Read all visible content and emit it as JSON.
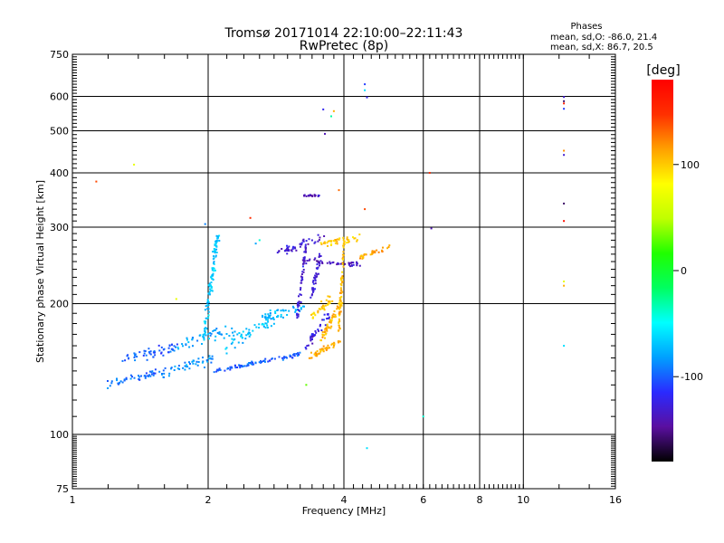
{
  "chart_data": {
    "type": "scatter",
    "title": "Tromsø 20171014 22:10:00–22:11:43",
    "subtitle": "RwPretec (8p)",
    "xlabel": "Frequency [MHz]",
    "ylabel": "Stationary phase Virtual Height [km]",
    "x_scale": "log",
    "y_scale": "log",
    "xlim": [
      1,
      16
    ],
    "ylim": [
      75,
      750
    ],
    "x_ticks": [
      1,
      2,
      4,
      6,
      8,
      10,
      16
    ],
    "y_ticks": [
      75,
      100,
      200,
      300,
      400,
      500,
      600,
      750
    ],
    "grid": true,
    "info": {
      "heading": "Phases",
      "line1": "mean, sd,O: -86.0, 21.4",
      "line2": "mean, sd,X: 86.7, 20.5"
    },
    "colorbar": {
      "label": "[deg]",
      "range": [
        -180,
        180
      ],
      "ticks": [
        -100,
        0,
        100
      ],
      "colors": [
        "#000000",
        "#5a0fa0",
        "#2a2aff",
        "#00a0ff",
        "#00ffff",
        "#00ff60",
        "#20ff00",
        "#c0ff00",
        "#ffff00",
        "#ffa000",
        "#ff3000",
        "#ff0000"
      ]
    },
    "clusters": [
      {
        "kind": "seg",
        "x1": 1.18,
        "y1": 130,
        "x2": 1.6,
        "y2": 140,
        "n": 50,
        "phase": -95,
        "jh": 0.03,
        "jf": 0.02
      },
      {
        "kind": "seg",
        "x1": 1.3,
        "y1": 150,
        "x2": 1.7,
        "y2": 158,
        "n": 55,
        "phase": -100,
        "jh": 0.04,
        "jf": 0.02
      },
      {
        "kind": "seg",
        "x1": 1.6,
        "y1": 138,
        "x2": 2.05,
        "y2": 150,
        "n": 45,
        "phase": -85,
        "jh": 0.04,
        "jf": 0.02
      },
      {
        "kind": "seg",
        "x1": 1.7,
        "y1": 160,
        "x2": 2.3,
        "y2": 175,
        "n": 45,
        "phase": -80,
        "jh": 0.05,
        "jf": 0.02
      },
      {
        "kind": "seg",
        "x1": 1.95,
        "y1": 165,
        "x2": 2.1,
        "y2": 290,
        "n": 110,
        "phase": -68,
        "jh": 0.03,
        "jf": 0.015
      },
      {
        "kind": "seg",
        "x1": 2.05,
        "y1": 140,
        "x2": 3.2,
        "y2": 153,
        "n": 90,
        "phase": -100,
        "jh": 0.015,
        "jf": 0.01
      },
      {
        "kind": "seg",
        "x1": 2.2,
        "y1": 158,
        "x2": 2.9,
        "y2": 192,
        "n": 60,
        "phase": -70,
        "jh": 0.05,
        "jf": 0.03
      },
      {
        "kind": "seg",
        "x1": 2.55,
        "y1": 182,
        "x2": 3.25,
        "y2": 196,
        "n": 35,
        "phase": -75,
        "jh": 0.03,
        "jf": 0.02
      },
      {
        "kind": "seg",
        "x1": 3.15,
        "y1": 185,
        "x2": 3.3,
        "y2": 275,
        "n": 55,
        "phase": -130,
        "jh": 0.03,
        "jf": 0.01
      },
      {
        "kind": "seg",
        "x1": 3.3,
        "y1": 160,
        "x2": 3.7,
        "y2": 190,
        "n": 40,
        "phase": -125,
        "jh": 0.04,
        "jf": 0.02
      },
      {
        "kind": "seg",
        "x1": 3.4,
        "y1": 210,
        "x2": 3.55,
        "y2": 260,
        "n": 40,
        "phase": -130,
        "jh": 0.03,
        "jf": 0.01
      },
      {
        "kind": "seg",
        "x1": 2.85,
        "y1": 262,
        "x2": 3.6,
        "y2": 285,
        "n": 45,
        "phase": -130,
        "jh": 0.03,
        "jf": 0.02
      },
      {
        "kind": "seg",
        "x1": 3.2,
        "y1": 253,
        "x2": 4.4,
        "y2": 245,
        "n": 45,
        "phase": -135,
        "jh": 0.02,
        "jf": 0.02
      },
      {
        "kind": "seg",
        "x1": 3.35,
        "y1": 150,
        "x2": 3.95,
        "y2": 165,
        "n": 50,
        "phase": 108,
        "jh": 0.025,
        "jf": 0.015
      },
      {
        "kind": "seg",
        "x1": 3.55,
        "y1": 165,
        "x2": 3.95,
        "y2": 200,
        "n": 55,
        "phase": 106,
        "jh": 0.03,
        "jf": 0.015
      },
      {
        "kind": "seg",
        "x1": 3.9,
        "y1": 175,
        "x2": 4.0,
        "y2": 275,
        "n": 70,
        "phase": 105,
        "jh": 0.03,
        "jf": 0.008
      },
      {
        "kind": "seg",
        "x1": 3.4,
        "y1": 186,
        "x2": 3.75,
        "y2": 206,
        "n": 35,
        "phase": 100,
        "jh": 0.03,
        "jf": 0.02
      },
      {
        "kind": "seg",
        "x1": 3.6,
        "y1": 275,
        "x2": 4.3,
        "y2": 282,
        "n": 40,
        "phase": 102,
        "jh": 0.03,
        "jf": 0.02
      },
      {
        "kind": "seg",
        "x1": 4.3,
        "y1": 255,
        "x2": 5.05,
        "y2": 270,
        "n": 35,
        "phase": 112,
        "jh": 0.02,
        "jf": 0.01
      },
      {
        "kind": "seg",
        "x1": 3.25,
        "y1": 355,
        "x2": 3.55,
        "y2": 355,
        "n": 18,
        "phase": -140,
        "jh": 0.01,
        "jf": 0.005
      }
    ],
    "points": [
      [
        1.13,
        382,
        140
      ],
      [
        1.37,
        418,
        70
      ],
      [
        1.7,
        205,
        70
      ],
      [
        2.48,
        315,
        150
      ],
      [
        3.3,
        130,
        30
      ],
      [
        3.6,
        560,
        -120
      ],
      [
        3.63,
        492,
        -140
      ],
      [
        3.9,
        365,
        130
      ],
      [
        4.45,
        640,
        -110
      ],
      [
        4.45,
        620,
        -60
      ],
      [
        4.5,
        597,
        -120
      ],
      [
        4.45,
        330,
        140
      ],
      [
        4.5,
        93,
        -60
      ],
      [
        6.0,
        110,
        -40
      ],
      [
        6.2,
        400,
        150
      ],
      [
        6.25,
        298,
        -140
      ],
      [
        12.3,
        598,
        -130
      ],
      [
        12.3,
        585,
        -160
      ],
      [
        12.3,
        578,
        160
      ],
      [
        12.3,
        562,
        -110
      ],
      [
        12.3,
        450,
        120
      ],
      [
        12.3,
        440,
        -130
      ],
      [
        12.3,
        340,
        -160
      ],
      [
        12.3,
        310,
        170
      ],
      [
        12.3,
        225,
        70
      ],
      [
        12.3,
        220,
        110
      ],
      [
        12.3,
        160,
        -60
      ],
      [
        3.8,
        555,
        110
      ],
      [
        3.75,
        540,
        -30
      ],
      [
        2.6,
        280,
        -40
      ],
      [
        2.55,
        275,
        -80
      ],
      [
        1.97,
        305,
        -90
      ]
    ]
  }
}
